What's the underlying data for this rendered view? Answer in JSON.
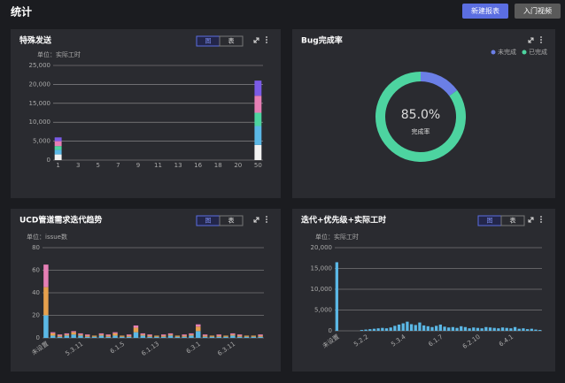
{
  "header": {
    "title": "统计",
    "buttons": [
      "新建报表",
      "入门视频"
    ]
  },
  "chart_data": [
    {
      "type": "bar",
      "stacked": true,
      "title": "特殊发送",
      "view_toggle": [
        "图",
        "表"
      ],
      "unit_label": "单位：实际工时",
      "categories": [
        "1",
        null,
        "3",
        null,
        "5",
        null,
        "7",
        null,
        "9",
        null,
        "11",
        null,
        "13",
        null,
        "16",
        null,
        "18",
        null,
        "20",
        null,
        "50"
      ],
      "series": [
        {
          "color": "#f2f2f2",
          "values": [
            1500,
            0,
            0,
            0,
            0,
            0,
            0,
            0,
            0,
            0,
            0,
            0,
            0,
            0,
            0,
            0,
            0,
            0,
            0,
            0,
            4000
          ]
        },
        {
          "color": "#5bb8e6",
          "values": [
            1200,
            0,
            0,
            0,
            0,
            0,
            0,
            0,
            0,
            0,
            0,
            0,
            0,
            0,
            0,
            0,
            0,
            0,
            0,
            0,
            5000
          ]
        },
        {
          "color": "#4dd4a0",
          "values": [
            1000,
            0,
            0,
            0,
            0,
            0,
            0,
            0,
            0,
            0,
            0,
            0,
            0,
            0,
            0,
            0,
            0,
            0,
            0,
            0,
            3500
          ]
        },
        {
          "color": "#e67fb5",
          "values": [
            1300,
            0,
            0,
            0,
            0,
            0,
            0,
            0,
            0,
            0,
            0,
            0,
            0,
            0,
            0,
            0,
            0,
            0,
            0,
            0,
            4500
          ]
        },
        {
          "color": "#7b5be6",
          "values": [
            1000,
            0,
            0,
            0,
            0,
            0,
            0,
            0,
            0,
            0,
            0,
            0,
            0,
            0,
            0,
            0,
            0,
            0,
            0,
            0,
            4000
          ]
        }
      ],
      "ylim": [
        0,
        25000
      ],
      "yticks": [
        0,
        {
          "value": 5000,
          "label": "5,000"
        },
        {
          "value": 10000,
          "label": "10,000"
        },
        {
          "value": 15000,
          "label": "15,000"
        },
        {
          "value": 20000,
          "label": "20,000"
        },
        {
          "value": 25000,
          "label": "25,000"
        }
      ],
      "grid": true
    },
    {
      "type": "pie",
      "donut": true,
      "title": "Bug完成率",
      "categories": [
        "未完成",
        "已完成"
      ],
      "values": [
        15,
        85
      ],
      "colors": [
        "#6b7fe6",
        "#4dd4a0"
      ],
      "center_label": "85.0%",
      "center_sublabel": "完成率",
      "legend": "top-right"
    },
    {
      "type": "bar",
      "stacked": true,
      "title": "UCD管道需求迭代趋势",
      "view_toggle": [
        "图",
        "表"
      ],
      "unit_label": "单位：issue数",
      "categories": [
        "未设置",
        null,
        null,
        null,
        null,
        "5.3.11",
        null,
        null,
        null,
        null,
        null,
        "6.1.5",
        null,
        null,
        null,
        null,
        "6.1.13",
        null,
        null,
        null,
        null,
        null,
        "6.3.1",
        null,
        null,
        null,
        null,
        "6.3.11",
        null,
        null,
        null,
        null
      ],
      "series": [
        {
          "color": "#5bb8e6",
          "values": [
            20,
            2,
            1,
            2,
            3,
            2,
            1,
            1,
            2,
            1,
            2,
            1,
            1,
            5,
            2,
            1,
            1,
            1,
            2,
            1,
            1,
            2,
            6,
            1,
            1,
            1,
            1,
            2,
            1,
            1,
            1,
            1
          ]
        },
        {
          "color": "#e6a04d",
          "values": [
            25,
            2,
            1,
            1,
            2,
            1,
            1,
            1,
            1,
            1,
            2,
            1,
            1,
            4,
            1,
            1,
            1,
            1,
            1,
            1,
            1,
            1,
            4,
            1,
            1,
            1,
            1,
            1,
            1,
            1,
            1,
            1
          ]
        },
        {
          "color": "#e67fb5",
          "values": [
            20,
            1,
            1,
            1,
            1,
            1,
            1,
            0,
            1,
            1,
            1,
            0,
            1,
            2,
            1,
            1,
            0,
            1,
            1,
            0,
            1,
            1,
            2,
            1,
            0,
            1,
            0,
            1,
            1,
            0,
            0,
            1
          ]
        }
      ],
      "ylim": [
        0,
        80
      ],
      "yticks": [
        0,
        20,
        40,
        60,
        80
      ],
      "grid": true
    },
    {
      "type": "bar",
      "stacked": false,
      "title": "迭代+优先级+实际工时",
      "view_toggle": [
        "图",
        "表"
      ],
      "unit_label": "单位：实际工时",
      "color": "#5bb8e6",
      "categories": [
        "未设置",
        null,
        null,
        null,
        null,
        null,
        null,
        "5.2.2",
        null,
        null,
        null,
        null,
        null,
        null,
        null,
        null,
        "5.3.4",
        null,
        null,
        null,
        null,
        null,
        null,
        null,
        null,
        "6.1.7",
        null,
        null,
        null,
        null,
        null,
        null,
        null,
        null,
        "6.2.10",
        null,
        null,
        null,
        null,
        null,
        null,
        null,
        "6.4.1",
        null,
        null,
        null,
        null,
        null,
        null,
        null
      ],
      "values": [
        16500,
        0,
        0,
        0,
        0,
        0,
        200,
        300,
        400,
        500,
        600,
        700,
        600,
        800,
        1200,
        1500,
        1800,
        2200,
        1600,
        1400,
        2000,
        1300,
        1100,
        900,
        1200,
        1500,
        1000,
        800,
        900,
        700,
        1100,
        900,
        600,
        800,
        700,
        600,
        900,
        800,
        700,
        600,
        800,
        700,
        600,
        900,
        500,
        600,
        400,
        500,
        300,
        200
      ],
      "ylim": [
        0,
        20000
      ],
      "yticks": [
        0,
        {
          "value": 5000,
          "label": "5,000"
        },
        {
          "value": 10000,
          "label": "10,000"
        },
        {
          "value": 15000,
          "label": "15,000"
        },
        {
          "value": 20000,
          "label": "20,000"
        }
      ],
      "grid": true
    }
  ]
}
